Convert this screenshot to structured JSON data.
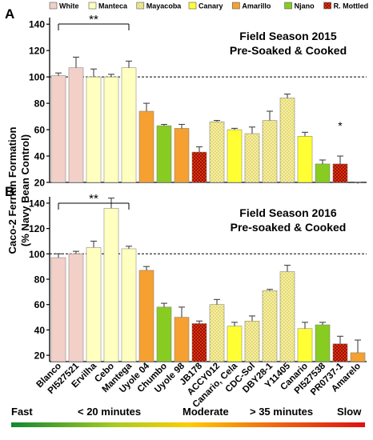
{
  "legend": [
    {
      "label": "White",
      "color": "#f2d0c8",
      "pattern": "solid"
    },
    {
      "label": "Manteca",
      "color": "#ffffc0",
      "pattern": "solid"
    },
    {
      "label": "Mayacoba",
      "color": "#f7ef9a",
      "pattern": "dots"
    },
    {
      "label": "Canary",
      "color": "#ffff33",
      "pattern": "solid"
    },
    {
      "label": "Amarillo",
      "color": "#f5a030",
      "pattern": "solid"
    },
    {
      "label": "Njano",
      "color": "#88cc22",
      "pattern": "solid"
    },
    {
      "label": "R. Mottled",
      "color": "#dd3311",
      "pattern": "checks"
    }
  ],
  "shared_ylabel_line1": "Caco-2 Ferritin Formation",
  "shared_ylabel_line2": "(% Navy Bean Control)",
  "speed_scale": {
    "labels": [
      "Fast",
      "< 20 minutes",
      "Moderate",
      "> 35 minutes",
      "Slow"
    ],
    "colors": [
      "#118833",
      "#aacc22",
      "#ffcc00",
      "#ee6611",
      "#dd1111"
    ]
  },
  "chart_data": [
    {
      "type": "bar",
      "panel": "A",
      "title_line1": "Field Season 2015",
      "title_line2": "Pre-Soaked & Cooked",
      "ylim": [
        20,
        145
      ],
      "yticks": [
        20,
        40,
        60,
        80,
        100,
        120,
        140
      ],
      "reference_line": 100,
      "significance": {
        "label": "**",
        "from": 0,
        "to": 4
      },
      "asterisk": {
        "label": "*",
        "index": 16
      },
      "categories": [
        "Blanco",
        "PI527521",
        "Ervilha",
        "Cebo",
        "Mantega",
        "Uyole 04",
        "Chumbo",
        "Uyole 98",
        "JB178",
        "ACCY012",
        "Canario, Cela",
        "CDC-Sol",
        "DBY28-1",
        "Y11405",
        "Canario",
        "PI527538",
        "PR0737-1",
        "Amarelo"
      ],
      "classes": [
        0,
        0,
        1,
        1,
        1,
        4,
        5,
        4,
        6,
        2,
        3,
        2,
        2,
        2,
        3,
        5,
        6,
        4
      ],
      "values": [
        101,
        107,
        100,
        100,
        107,
        74,
        63,
        61,
        43,
        66,
        60,
        57,
        67,
        84,
        55,
        34,
        34,
        19
      ],
      "errors": [
        2,
        8,
        6,
        2,
        5,
        6,
        1,
        3,
        4,
        1,
        1,
        5,
        7,
        3,
        3,
        3,
        6,
        1
      ]
    },
    {
      "type": "bar",
      "panel": "B",
      "title_line1": "Field Season 2016",
      "title_line2": "Pre-soaked & Cooked",
      "ylim": [
        15,
        145
      ],
      "yticks": [
        20,
        40,
        60,
        80,
        100,
        120,
        140
      ],
      "reference_line": 100,
      "significance": {
        "label": "**",
        "from": 0,
        "to": 4
      },
      "categories": [
        "Blanco",
        "PI527521",
        "Ervilha",
        "Cebo",
        "Mantega",
        "Uyole 04",
        "Chumbo",
        "Uyole 98",
        "JB178",
        "ACCY012",
        "Canario, Cela",
        "CDC-Sol",
        "DBY28-1",
        "Y11405",
        "Canario",
        "PI527538",
        "PR0737-1",
        "Amarelo"
      ],
      "classes": [
        0,
        0,
        1,
        1,
        1,
        4,
        5,
        4,
        6,
        2,
        3,
        2,
        2,
        2,
        3,
        5,
        6,
        4
      ],
      "values": [
        97,
        100,
        105,
        136,
        104,
        87,
        58,
        50,
        45,
        60,
        43,
        47,
        71,
        86,
        41,
        44,
        29,
        22
      ],
      "errors": [
        3,
        2,
        5,
        8,
        2,
        3,
        3,
        8,
        2,
        4,
        3,
        4,
        1,
        5,
        5,
        2,
        6,
        10
      ]
    }
  ]
}
